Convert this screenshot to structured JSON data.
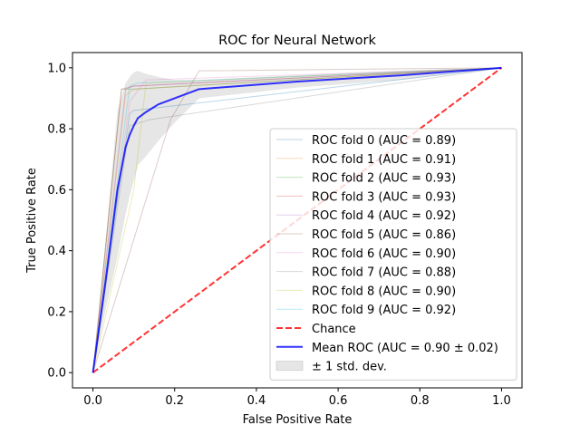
{
  "chart_data": {
    "type": "line",
    "title": "ROC for Neural Network",
    "xlabel": "False Positive Rate",
    "ylabel": "True Positive Rate",
    "xlim": [
      -0.05,
      1.05
    ],
    "ylim": [
      -0.05,
      1.05
    ],
    "grid": false,
    "legend_placement": "lower right",
    "x_ticks": [
      "0.0",
      "0.2",
      "0.4",
      "0.6",
      "0.8",
      "1.0"
    ],
    "y_ticks": [
      "0.0",
      "0.2",
      "0.4",
      "0.6",
      "0.8",
      "1.0"
    ],
    "folds": [
      {
        "name": "ROC fold 0 (AUC = 0.89)",
        "color": "#1f77b4",
        "x": [
          0,
          0.09,
          0.1,
          1
        ],
        "y": [
          0,
          0.85,
          0.86,
          1
        ]
      },
      {
        "name": "ROC fold 1 (AUC = 0.91)",
        "color": "#ff7f0e",
        "x": [
          0,
          0.08,
          0.1,
          1
        ],
        "y": [
          0,
          0.91,
          0.93,
          1
        ]
      },
      {
        "name": "ROC fold 2 (AUC = 0.93)",
        "color": "#2ca02c",
        "x": [
          0,
          0.07,
          0.1,
          1
        ],
        "y": [
          0,
          0.93,
          0.93,
          1
        ]
      },
      {
        "name": "ROC fold 3 (AUC = 0.93)",
        "color": "#d62728",
        "x": [
          0,
          0.07,
          0.1,
          1
        ],
        "y": [
          0,
          0.93,
          0.94,
          1
        ]
      },
      {
        "name": "ROC fold 4 (AUC = 0.92)",
        "color": "#9467bd",
        "x": [
          0,
          0.08,
          0.1,
          1
        ],
        "y": [
          0,
          0.93,
          0.94,
          1
        ]
      },
      {
        "name": "ROC fold 5 (AUC = 0.86)",
        "color": "#8c564b",
        "x": [
          0,
          0.19,
          0.26,
          1
        ],
        "y": [
          0,
          0.83,
          0.99,
          1
        ]
      },
      {
        "name": "ROC fold 6 (AUC = 0.90)",
        "color": "#e377c2",
        "x": [
          0,
          0.09,
          0.13,
          1
        ],
        "y": [
          0,
          0.89,
          0.96,
          1
        ]
      },
      {
        "name": "ROC fold 7 (AUC = 0.88)",
        "color": "#7f7f7f",
        "x": [
          0,
          0.09,
          0.14,
          1
        ],
        "y": [
          0,
          0.81,
          0.83,
          1
        ]
      },
      {
        "name": "ROC fold 8 (AUC = 0.90)",
        "color": "#bcbd22",
        "x": [
          0,
          0.1,
          0.13,
          1
        ],
        "y": [
          0,
          0.6,
          0.95,
          1
        ]
      },
      {
        "name": "ROC fold 9 (AUC = 0.92)",
        "color": "#17becf",
        "x": [
          0,
          0.09,
          0.11,
          1
        ],
        "y": [
          0,
          0.94,
          0.95,
          1
        ]
      }
    ],
    "chance": {
      "name": "Chance",
      "color": "#ff0000",
      "x": [
        0,
        1
      ],
      "y": [
        0,
        1
      ]
    },
    "mean_roc": {
      "name": "Mean ROC (AUC = 0.90 ± 0.02)",
      "color": "#0000ff",
      "x": [
        0,
        0.03,
        0.06,
        0.08,
        0.09,
        0.1,
        0.11,
        0.13,
        0.16,
        0.2,
        0.26,
        0.5,
        0.75,
        1
      ],
      "y": [
        0,
        0.29,
        0.6,
        0.74,
        0.78,
        0.81,
        0.835,
        0.855,
        0.88,
        0.9,
        0.93,
        0.955,
        0.975,
        1
      ]
    },
    "std_band": {
      "name": "± 1 std. dev.",
      "color": "#808080",
      "x": [
        0,
        0.03,
        0.06,
        0.08,
        0.09,
        0.1,
        0.11,
        0.13,
        0.16,
        0.2,
        0.26,
        0.5,
        0.75,
        1
      ],
      "upper": [
        0,
        0.42,
        0.86,
        0.95,
        0.97,
        0.985,
        0.99,
        0.98,
        0.97,
        0.96,
        0.96,
        0.975,
        0.99,
        1
      ],
      "lower": [
        0,
        0.2,
        0.38,
        0.52,
        0.58,
        0.63,
        0.68,
        0.71,
        0.76,
        0.82,
        0.9,
        0.935,
        0.96,
        1
      ]
    }
  }
}
